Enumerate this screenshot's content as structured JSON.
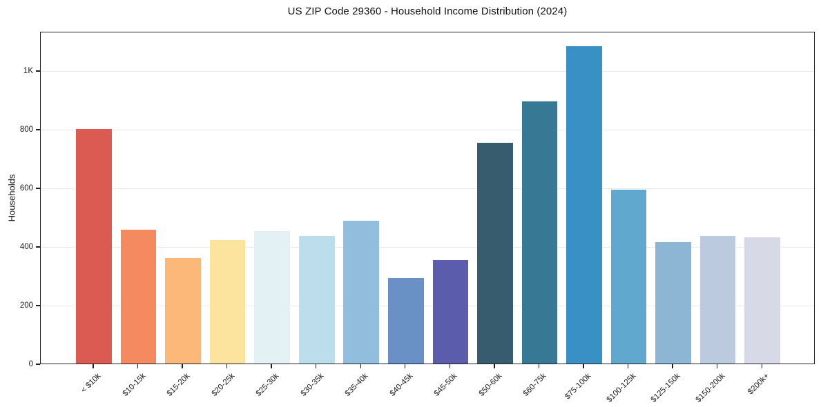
{
  "chart_data": {
    "type": "bar",
    "title": "US ZIP Code 29360 - Household Income Distribution (2024)",
    "xlabel": "",
    "ylabel": "Households",
    "categories": [
      "< $10k",
      "$10-15k",
      "$15-20k",
      "$20-25k",
      "$25-30k",
      "$30-35k",
      "$35-40k",
      "$40-45k",
      "$45-50k",
      "$50-60k",
      "$60-75k",
      "$75-100k",
      "$100-125k",
      "$125-150k",
      "$150-200k",
      "$200k+"
    ],
    "values": [
      800,
      456,
      360,
      420,
      451,
      435,
      487,
      291,
      352,
      753,
      895,
      1083,
      592,
      414,
      436,
      430
    ],
    "bar_colors": [
      "#db5a52",
      "#f5895f",
      "#fbb878",
      "#fde49e",
      "#e3f0f4",
      "#bcdeec",
      "#91bedc",
      "#6991c5",
      "#5b5dac",
      "#365c6d",
      "#377895",
      "#3890c5",
      "#60a8cd",
      "#8db6d5",
      "#bccadf",
      "#d7dae6"
    ],
    "ylim": [
      0,
      1134
    ],
    "yticks": [
      {
        "value": 0,
        "label": "0"
      },
      {
        "value": 200,
        "label": "200"
      },
      {
        "value": 400,
        "label": "400"
      },
      {
        "value": 600,
        "label": "600"
      },
      {
        "value": 800,
        "label": "800"
      },
      {
        "value": 1000,
        "label": "1K"
      }
    ],
    "grid": "horizontal",
    "legend": "none"
  }
}
